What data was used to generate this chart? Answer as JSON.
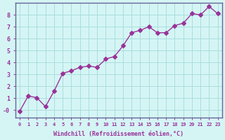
{
  "x": [
    0,
    1,
    2,
    3,
    4,
    5,
    6,
    7,
    8,
    9,
    10,
    11,
    12,
    13,
    14,
    15,
    16,
    17,
    18,
    19,
    20,
    21,
    22,
    23
  ],
  "y": [
    -0.1,
    1.2,
    1.05,
    0.3,
    1.6,
    3.1,
    3.3,
    3.6,
    3.7,
    3.6,
    4.3,
    4.5,
    5.4,
    6.5,
    6.7,
    7.0,
    6.5,
    6.5,
    7.1,
    7.3,
    8.1,
    8.0,
    8.7,
    8.1
  ],
  "xlabel": "Windchill (Refroidissement éolien,°C)",
  "xlim": [
    -0.5,
    23.5
  ],
  "ylim": [
    -0.6,
    9.0
  ],
  "yticks": [
    0,
    1,
    2,
    3,
    4,
    5,
    6,
    7,
    8
  ],
  "ytick_labels": [
    "-0",
    "1",
    "2",
    "3",
    "4",
    "5",
    "6",
    "7",
    "8"
  ],
  "xticks": [
    0,
    1,
    2,
    3,
    4,
    5,
    6,
    7,
    8,
    9,
    10,
    11,
    12,
    13,
    14,
    15,
    16,
    17,
    18,
    19,
    20,
    21,
    22,
    23
  ],
  "line_color": "#993399",
  "marker": "D",
  "marker_size": 3,
  "bg_color": "#d5f5f5",
  "grid_color": "#aadddd",
  "axis_color": "#666699",
  "label_color": "#993399",
  "tick_label_color": "#993399"
}
